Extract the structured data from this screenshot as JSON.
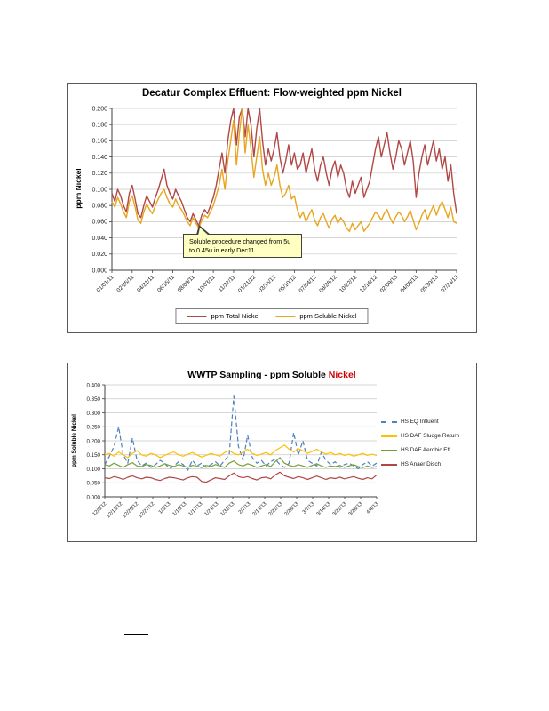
{
  "page": {
    "background": "#ffffff"
  },
  "chart_data": [
    {
      "type": "line",
      "title": "Decatur Complex Effluent:  Flow-weighted ppm Nickel",
      "xlabel": "",
      "ylabel": "ppm Nickel",
      "ylim": [
        0,
        0.2
      ],
      "ytick_step": 0.02,
      "grid": true,
      "legend_position": "bottom",
      "annotation": {
        "text": "Soluble procedure changed from 5u to 0.45u in early Dec11.",
        "bg": "#ffffc1"
      },
      "categories": [
        "01/01/11",
        "02/25/11",
        "04/21/11",
        "06/15/11",
        "08/09/11",
        "10/03/11",
        "11/27/11",
        "01/21/12",
        "03/16/12",
        "05/10/12",
        "07/04/12",
        "08/28/12",
        "10/22/12",
        "12/16/12",
        "02/09/13",
        "04/05/13",
        "05/30/13",
        "07/24/13"
      ],
      "series": [
        {
          "name": "ppm Total Nickel",
          "color": "#b04846",
          "values": [
            0.095,
            0.085,
            0.1,
            0.092,
            0.08,
            0.072,
            0.095,
            0.105,
            0.088,
            0.07,
            0.065,
            0.08,
            0.092,
            0.085,
            0.078,
            0.09,
            0.1,
            0.112,
            0.125,
            0.105,
            0.095,
            0.088,
            0.1,
            0.092,
            0.085,
            0.075,
            0.065,
            0.06,
            0.07,
            0.062,
            0.055,
            0.068,
            0.075,
            0.07,
            0.08,
            0.09,
            0.105,
            0.125,
            0.145,
            0.12,
            0.16,
            0.185,
            0.2,
            0.155,
            0.19,
            0.2,
            0.165,
            0.2,
            0.18,
            0.14,
            0.175,
            0.2,
            0.16,
            0.13,
            0.15,
            0.135,
            0.15,
            0.17,
            0.14,
            0.12,
            0.135,
            0.155,
            0.13,
            0.145,
            0.125,
            0.13,
            0.145,
            0.12,
            0.135,
            0.15,
            0.125,
            0.11,
            0.13,
            0.14,
            0.12,
            0.105,
            0.125,
            0.135,
            0.115,
            0.13,
            0.12,
            0.1,
            0.09,
            0.11,
            0.095,
            0.105,
            0.115,
            0.09,
            0.1,
            0.11,
            0.13,
            0.15,
            0.165,
            0.14,
            0.155,
            0.17,
            0.145,
            0.125,
            0.14,
            0.16,
            0.15,
            0.13,
            0.145,
            0.16,
            0.135,
            0.09,
            0.12,
            0.14,
            0.155,
            0.13,
            0.145,
            0.16,
            0.135,
            0.15,
            0.125,
            0.14,
            0.11,
            0.13,
            0.095,
            0.07
          ]
        },
        {
          "name": "ppm Soluble Nickel",
          "color": "#e8a51f",
          "values": [
            0.085,
            0.078,
            0.09,
            0.082,
            0.072,
            0.065,
            0.085,
            0.092,
            0.078,
            0.062,
            0.058,
            0.072,
            0.082,
            0.075,
            0.07,
            0.08,
            0.088,
            0.095,
            0.1,
            0.09,
            0.082,
            0.078,
            0.088,
            0.08,
            0.075,
            0.068,
            0.06,
            0.055,
            0.065,
            0.058,
            0.052,
            0.062,
            0.068,
            0.065,
            0.072,
            0.08,
            0.092,
            0.105,
            0.125,
            0.1,
            0.135,
            0.16,
            0.185,
            0.13,
            0.17,
            0.2,
            0.145,
            0.18,
            0.15,
            0.115,
            0.14,
            0.165,
            0.125,
            0.105,
            0.12,
            0.105,
            0.115,
            0.13,
            0.105,
            0.09,
            0.095,
            0.105,
            0.088,
            0.092,
            0.075,
            0.065,
            0.072,
            0.06,
            0.068,
            0.075,
            0.062,
            0.055,
            0.065,
            0.07,
            0.06,
            0.052,
            0.063,
            0.068,
            0.058,
            0.065,
            0.06,
            0.052,
            0.048,
            0.058,
            0.05,
            0.055,
            0.06,
            0.048,
            0.053,
            0.058,
            0.065,
            0.072,
            0.068,
            0.062,
            0.07,
            0.075,
            0.065,
            0.058,
            0.066,
            0.072,
            0.068,
            0.06,
            0.066,
            0.074,
            0.062,
            0.05,
            0.058,
            0.068,
            0.075,
            0.063,
            0.072,
            0.08,
            0.068,
            0.078,
            0.085,
            0.075,
            0.065,
            0.078,
            0.06,
            0.058
          ]
        }
      ]
    },
    {
      "type": "line",
      "title": "WWTP Sampling - ppm Soluble Nickel",
      "title_black": "WWTP Sampling - ppm Soluble ",
      "title_red": "Nickel",
      "title_red_color": "#d00000",
      "xlabel": "",
      "ylabel": "ppm Soluble Nickel",
      "ylim": [
        0,
        0.4
      ],
      "ytick_step": 0.05,
      "grid": true,
      "legend_position": "right",
      "categories": [
        "12/6/12",
        "12/13/12",
        "12/20/12",
        "12/27/12",
        "1/3/13",
        "1/10/13",
        "1/17/13",
        "1/24/13",
        "1/31/13",
        "2/7/13",
        "2/14/13",
        "2/21/13",
        "2/28/13",
        "3/7/13",
        "3/14/13",
        "3/21/13",
        "3/28/13",
        "4/4/13"
      ],
      "series": [
        {
          "name": "HS EQ Influent",
          "color": "#4f81bd",
          "dash": "5 3",
          "values": [
            0.115,
            0.145,
            0.18,
            0.25,
            0.15,
            0.12,
            0.21,
            0.13,
            0.11,
            0.12,
            0.105,
            0.115,
            0.13,
            0.12,
            0.1,
            0.11,
            0.125,
            0.115,
            0.095,
            0.13,
            0.11,
            0.12,
            0.105,
            0.115,
            0.125,
            0.11,
            0.13,
            0.15,
            0.36,
            0.18,
            0.13,
            0.22,
            0.14,
            0.12,
            0.13,
            0.11,
            0.125,
            0.135,
            0.115,
            0.105,
            0.12,
            0.23,
            0.15,
            0.2,
            0.13,
            0.12,
            0.11,
            0.16,
            0.13,
            0.115,
            0.125,
            0.105,
            0.115,
            0.12,
            0.11,
            0.1,
            0.115,
            0.125,
            0.11,
            0.12
          ]
        },
        {
          "name": "HS DAF Sludge Return",
          "color": "#ffc000",
          "values": [
            0.15,
            0.155,
            0.145,
            0.16,
            0.15,
            0.14,
            0.155,
            0.165,
            0.15,
            0.145,
            0.155,
            0.15,
            0.14,
            0.148,
            0.155,
            0.16,
            0.15,
            0.145,
            0.152,
            0.158,
            0.15,
            0.142,
            0.148,
            0.155,
            0.15,
            0.145,
            0.158,
            0.165,
            0.155,
            0.15,
            0.16,
            0.17,
            0.155,
            0.148,
            0.152,
            0.158,
            0.15,
            0.165,
            0.175,
            0.185,
            0.17,
            0.16,
            0.172,
            0.165,
            0.155,
            0.162,
            0.17,
            0.16,
            0.152,
            0.158,
            0.15,
            0.155,
            0.148,
            0.152,
            0.145,
            0.15,
            0.155,
            0.148,
            0.152,
            0.148
          ]
        },
        {
          "name": "HS DAF Aerobic Eff",
          "color": "#76a03a",
          "values": [
            0.115,
            0.11,
            0.12,
            0.112,
            0.105,
            0.115,
            0.122,
            0.11,
            0.108,
            0.115,
            0.112,
            0.105,
            0.11,
            0.118,
            0.112,
            0.108,
            0.115,
            0.11,
            0.105,
            0.112,
            0.11,
            0.104,
            0.112,
            0.108,
            0.115,
            0.11,
            0.105,
            0.12,
            0.128,
            0.115,
            0.11,
            0.118,
            0.112,
            0.105,
            0.11,
            0.115,
            0.108,
            0.125,
            0.14,
            0.12,
            0.112,
            0.108,
            0.115,
            0.11,
            0.105,
            0.112,
            0.118,
            0.11,
            0.105,
            0.11,
            0.108,
            0.112,
            0.105,
            0.11,
            0.115,
            0.108,
            0.104,
            0.11,
            0.105,
            0.108
          ]
        },
        {
          "name": "HS Anaer Disch",
          "color": "#b04846",
          "values": [
            0.068,
            0.065,
            0.072,
            0.068,
            0.062,
            0.07,
            0.075,
            0.068,
            0.064,
            0.07,
            0.068,
            0.062,
            0.058,
            0.065,
            0.07,
            0.068,
            0.064,
            0.06,
            0.068,
            0.072,
            0.07,
            0.055,
            0.052,
            0.06,
            0.068,
            0.065,
            0.062,
            0.075,
            0.085,
            0.072,
            0.068,
            0.072,
            0.065,
            0.06,
            0.068,
            0.07,
            0.064,
            0.078,
            0.088,
            0.075,
            0.07,
            0.065,
            0.072,
            0.068,
            0.062,
            0.068,
            0.074,
            0.068,
            0.062,
            0.068,
            0.065,
            0.07,
            0.064,
            0.068,
            0.072,
            0.066,
            0.062,
            0.068,
            0.064,
            0.078
          ]
        }
      ]
    }
  ]
}
